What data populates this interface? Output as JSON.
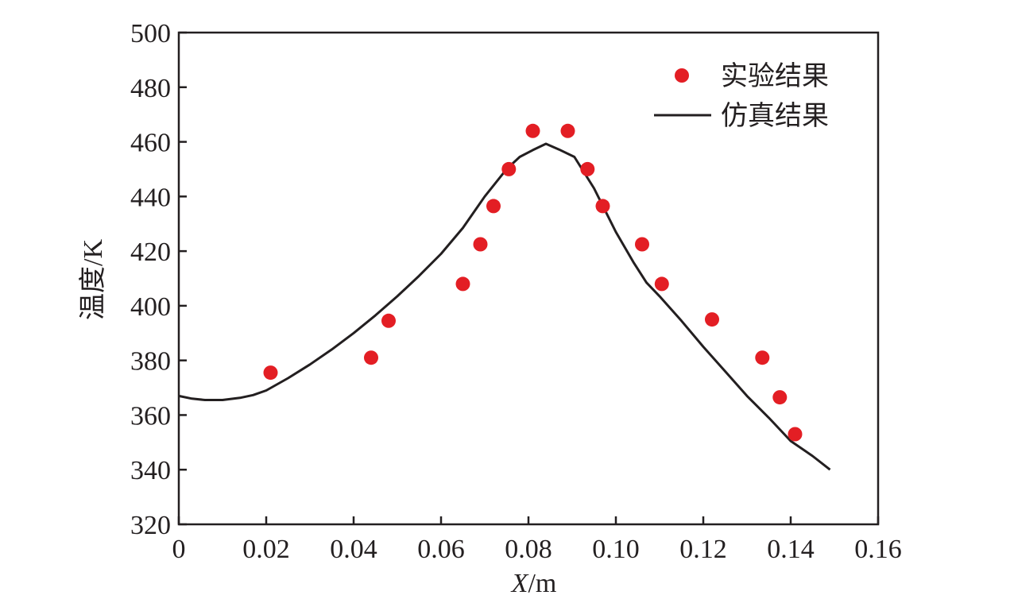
{
  "chart_data": {
    "type": "scatter",
    "title": "",
    "xlabel_var": "X",
    "xlabel_unit": "/m",
    "ylabel": "温度/K",
    "xlim": [
      0,
      0.16
    ],
    "ylim": [
      320,
      500
    ],
    "xticks": [
      "0",
      "0.02",
      "0.04",
      "0.06",
      "0.08",
      "0.10",
      "0.12",
      "0.14",
      "0.16"
    ],
    "xtick_values": [
      0,
      0.02,
      0.04,
      0.06,
      0.08,
      0.1,
      0.12,
      0.14,
      0.16
    ],
    "yticks": [
      "320",
      "340",
      "360",
      "380",
      "400",
      "420",
      "440",
      "460",
      "480",
      "500"
    ],
    "ytick_values": [
      320,
      340,
      360,
      380,
      400,
      420,
      440,
      460,
      480,
      500
    ],
    "grid": false,
    "legend_position": "top-right",
    "colors": {
      "experiment": "#e31e24",
      "simulation": "#231f20",
      "axis": "#231f20"
    },
    "series": [
      {
        "name": "实验结果",
        "kind": "scatter",
        "points": [
          [
            0.021,
            375.5
          ],
          [
            0.044,
            381
          ],
          [
            0.048,
            394.5
          ],
          [
            0.065,
            408
          ],
          [
            0.069,
            422.5
          ],
          [
            0.072,
            436.5
          ],
          [
            0.0755,
            450
          ],
          [
            0.081,
            464
          ],
          [
            0.089,
            464
          ],
          [
            0.0935,
            450
          ],
          [
            0.097,
            436.5
          ],
          [
            0.106,
            422.5
          ],
          [
            0.1105,
            408
          ],
          [
            0.122,
            395
          ],
          [
            0.1335,
            381
          ],
          [
            0.1375,
            366.5
          ],
          [
            0.141,
            353
          ]
        ]
      },
      {
        "name": "仿真结果",
        "kind": "line",
        "points": [
          [
            0.0,
            367
          ],
          [
            0.003,
            366
          ],
          [
            0.006,
            365.5
          ],
          [
            0.01,
            365.5
          ],
          [
            0.014,
            366.3
          ],
          [
            0.017,
            367.3
          ],
          [
            0.02,
            369
          ],
          [
            0.025,
            373.5
          ],
          [
            0.03,
            378.5
          ],
          [
            0.035,
            384
          ],
          [
            0.04,
            390
          ],
          [
            0.045,
            396.5
          ],
          [
            0.05,
            403.5
          ],
          [
            0.055,
            411
          ],
          [
            0.06,
            419
          ],
          [
            0.065,
            428.5
          ],
          [
            0.07,
            440
          ],
          [
            0.075,
            450
          ],
          [
            0.078,
            454.5
          ],
          [
            0.081,
            457
          ],
          [
            0.084,
            459.3
          ],
          [
            0.087,
            457.2
          ],
          [
            0.0905,
            454.5
          ],
          [
            0.095,
            443
          ],
          [
            0.1,
            427
          ],
          [
            0.104,
            416
          ],
          [
            0.107,
            408.5
          ],
          [
            0.11,
            403.5
          ],
          [
            0.115,
            394.5
          ],
          [
            0.12,
            385
          ],
          [
            0.125,
            376
          ],
          [
            0.13,
            367
          ],
          [
            0.135,
            359
          ],
          [
            0.14,
            350.5
          ],
          [
            0.145,
            345
          ],
          [
            0.149,
            340
          ]
        ]
      }
    ]
  }
}
